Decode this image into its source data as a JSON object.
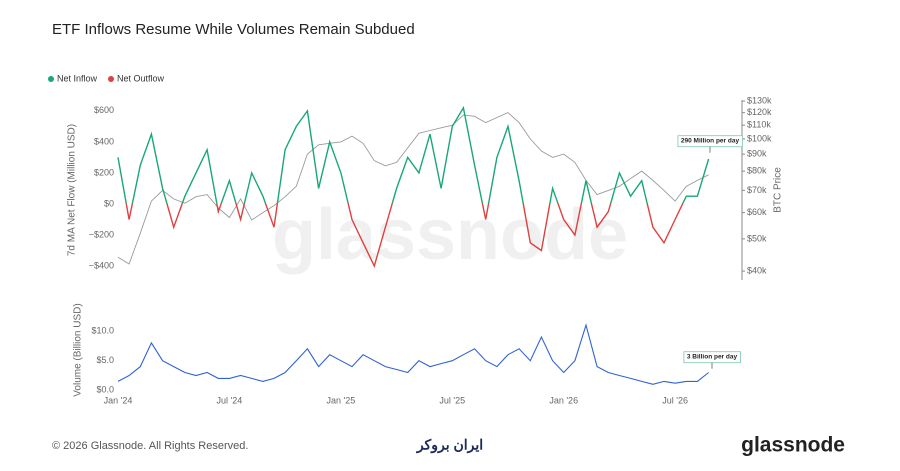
{
  "title": "ETF Inflows Resume While Volumes Remain Subdued",
  "watermark": "glassnode",
  "footer": {
    "copyright": "© 2026 Glassnode. All Rights Reserved.",
    "partner": "ایران بروکر",
    "brand": "glassnode"
  },
  "chart_data": [
    {
      "type": "line",
      "ylabel": "7d MA Net Flow (Million USD)",
      "y2label": "BTC Price",
      "annotation": "290 Million per day",
      "x": [
        2024.0,
        2024.05,
        2024.1,
        2024.15,
        2024.2,
        2024.25,
        2024.3,
        2024.35,
        2024.4,
        2024.45,
        2024.5,
        2024.55,
        2024.6,
        2024.65,
        2024.7,
        2024.75,
        2024.8,
        2024.85,
        2024.9,
        2024.95,
        2025.0,
        2025.05,
        2025.1,
        2025.15,
        2025.2,
        2025.25,
        2025.3,
        2025.35,
        2025.4,
        2025.45,
        2025.5,
        2025.55,
        2025.6,
        2025.65,
        2025.7,
        2025.75,
        2025.8,
        2025.85,
        2025.9,
        2025.95,
        2026.0,
        2026.05,
        2026.1,
        2026.15,
        2026.2,
        2026.25,
        2026.3,
        2026.35,
        2026.4,
        2026.45,
        2026.5,
        2026.55,
        2026.6,
        2026.65
      ],
      "xlim": [
        2024.0,
        2026.8
      ],
      "ylim": [
        -490,
        670
      ],
      "yticks": [
        {
          "value": -400,
          "label": "−$400"
        },
        {
          "value": -200,
          "label": "−$200"
        },
        {
          "value": 0,
          "label": "$0"
        },
        {
          "value": 200,
          "label": "$200"
        },
        {
          "value": 400,
          "label": "$400"
        },
        {
          "value": 600,
          "label": "$600"
        }
      ],
      "y2lim": [
        37600,
        131000
      ],
      "y2scale": "log",
      "y2ticks": [
        {
          "value": 40000,
          "label": "$40k"
        },
        {
          "value": 50000,
          "label": "$50k"
        },
        {
          "value": 60000,
          "label": "$60k"
        },
        {
          "value": 70000,
          "label": "$70k"
        },
        {
          "value": 80000,
          "label": "$80k"
        },
        {
          "value": 90000,
          "label": "$90k"
        },
        {
          "value": 100000,
          "label": "$100k"
        },
        {
          "value": 110000,
          "label": "$110k"
        },
        {
          "value": 120000,
          "label": "$120k"
        },
        {
          "value": 130000,
          "label": "$130k"
        }
      ],
      "legend": "top-left",
      "series": [
        {
          "name": "Net Inflow",
          "negative_name": "Net Outflow",
          "color": "#18a874",
          "negative_color": "#e0403f",
          "values": [
            300,
            -100,
            250,
            450,
            100,
            -150,
            50,
            200,
            350,
            -50,
            150,
            -100,
            200,
            50,
            -150,
            350,
            500,
            600,
            100,
            400,
            200,
            -100,
            -250,
            -400,
            -150,
            100,
            300,
            200,
            450,
            100,
            500,
            620,
            250,
            -100,
            300,
            500,
            150,
            -250,
            -300,
            100,
            -100,
            -200,
            150,
            -150,
            -50,
            200,
            50,
            150,
            -150,
            -250,
            -100,
            50,
            50,
            290
          ]
        },
        {
          "color": "#9a9a9a",
          "axis": "y2",
          "values": [
            44000,
            42000,
            52000,
            65000,
            70000,
            66000,
            64000,
            67000,
            68000,
            62000,
            58000,
            66000,
            57000,
            60000,
            63000,
            67000,
            72000,
            90000,
            96000,
            97000,
            98000,
            102000,
            97000,
            86000,
            83000,
            85000,
            94000,
            104000,
            106000,
            108000,
            110000,
            118000,
            117000,
            112000,
            116000,
            120000,
            112000,
            100000,
            92000,
            88000,
            90000,
            85000,
            75000,
            68000,
            70000,
            72000,
            76000,
            80000,
            75000,
            70000,
            65000,
            72000,
            75000,
            78000
          ]
        }
      ]
    },
    {
      "type": "line",
      "ylabel": "Volume (Billion USD)",
      "annotation": "3 Billion per day",
      "x": [
        2024.0,
        2024.05,
        2024.1,
        2024.15,
        2024.2,
        2024.25,
        2024.3,
        2024.35,
        2024.4,
        2024.45,
        2024.5,
        2024.55,
        2024.6,
        2024.65,
        2024.7,
        2024.75,
        2024.8,
        2024.85,
        2024.9,
        2024.95,
        2025.0,
        2025.05,
        2025.1,
        2025.15,
        2025.2,
        2025.25,
        2025.3,
        2025.35,
        2025.4,
        2025.45,
        2025.5,
        2025.55,
        2025.6,
        2025.65,
        2025.7,
        2025.75,
        2025.8,
        2025.85,
        2025.9,
        2025.95,
        2026.0,
        2026.05,
        2026.1,
        2026.15,
        2026.2,
        2026.25,
        2026.3,
        2026.35,
        2026.4,
        2026.45,
        2026.5,
        2026.55,
        2026.6,
        2026.65
      ],
      "xlim": [
        2024.0,
        2026.8
      ],
      "xticks": [
        {
          "value": 2024.0,
          "label": "Jan '24"
        },
        {
          "value": 2024.5,
          "label": "Jul '24"
        },
        {
          "value": 2025.0,
          "label": "Jan '25"
        },
        {
          "value": 2025.5,
          "label": "Jul '25"
        },
        {
          "value": 2026.0,
          "label": "Jan '26"
        },
        {
          "value": 2026.5,
          "label": "Jul '26"
        }
      ],
      "ylim": [
        -0.8,
        14.4
      ],
      "yticks": [
        {
          "value": 0,
          "label": "$0.0"
        },
        {
          "value": 5,
          "label": "$5.0"
        },
        {
          "value": 10,
          "label": "$10.0"
        }
      ],
      "series": [
        {
          "color": "#2f62d6",
          "values": [
            1.5,
            2.5,
            4,
            8,
            5,
            4,
            3,
            2.5,
            3,
            2,
            2,
            2.5,
            2,
            1.5,
            2,
            3,
            5,
            7,
            4,
            6,
            5,
            4,
            6,
            5,
            4,
            3.5,
            3,
            5,
            4,
            4.5,
            5,
            6,
            7,
            5,
            4,
            6,
            7,
            5,
            9,
            5,
            3,
            5,
            11,
            4,
            3,
            2.5,
            2,
            1.5,
            1,
            1.5,
            1.2,
            1.5,
            1.5,
            3
          ]
        }
      ]
    }
  ]
}
